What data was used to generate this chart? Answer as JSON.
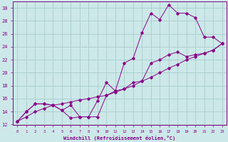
{
  "xlabel": "Windchill (Refroidissement éolien,°C)",
  "bg_color": "#cce8e8",
  "line_color": "#880088",
  "grid_color": "#aacccc",
  "xlim": [
    -0.5,
    23.5
  ],
  "ylim": [
    12,
    31
  ],
  "xticks": [
    0,
    1,
    2,
    3,
    4,
    5,
    6,
    7,
    8,
    9,
    10,
    11,
    12,
    13,
    14,
    15,
    16,
    17,
    18,
    19,
    20,
    21,
    22,
    23
  ],
  "yticks": [
    12,
    14,
    16,
    18,
    20,
    22,
    24,
    26,
    28,
    30
  ],
  "line1_x": [
    0,
    1,
    2,
    3,
    4,
    5,
    6,
    7,
    8,
    9,
    10,
    11,
    12,
    13,
    14,
    15,
    16,
    17,
    18,
    19,
    20,
    21,
    22,
    23
  ],
  "line1_y": [
    12.5,
    14.0,
    15.2,
    15.2,
    15.0,
    14.2,
    13.0,
    13.2,
    13.2,
    15.7,
    18.5,
    17.2,
    21.5,
    22.2,
    26.2,
    29.2,
    28.2,
    30.5,
    29.2,
    29.2,
    28.5,
    25.5,
    25.5,
    24.5
  ],
  "line2_x": [
    0,
    1,
    2,
    3,
    4,
    5,
    6,
    7,
    8,
    9,
    10,
    11,
    12,
    13,
    14,
    15,
    16,
    17,
    18,
    19,
    20,
    21,
    22,
    23
  ],
  "line2_y": [
    12.5,
    14.0,
    15.2,
    15.2,
    15.0,
    14.2,
    15.0,
    13.2,
    13.2,
    13.2,
    16.5,
    17.2,
    17.5,
    18.5,
    18.7,
    21.5,
    22.0,
    22.8,
    23.2,
    22.5,
    22.8,
    23.0,
    23.5,
    24.5
  ],
  "line3_x": [
    0,
    1,
    2,
    3,
    4,
    5,
    6,
    7,
    8,
    9,
    10,
    11,
    12,
    13,
    14,
    15,
    16,
    17,
    18,
    19,
    20,
    21,
    22,
    23
  ],
  "line3_y": [
    12.5,
    13.2,
    14.0,
    14.5,
    15.0,
    15.2,
    15.5,
    15.8,
    16.0,
    16.3,
    16.5,
    17.0,
    17.5,
    18.0,
    18.7,
    19.3,
    20.0,
    20.7,
    21.3,
    22.0,
    22.5,
    23.0,
    23.5,
    24.5
  ]
}
